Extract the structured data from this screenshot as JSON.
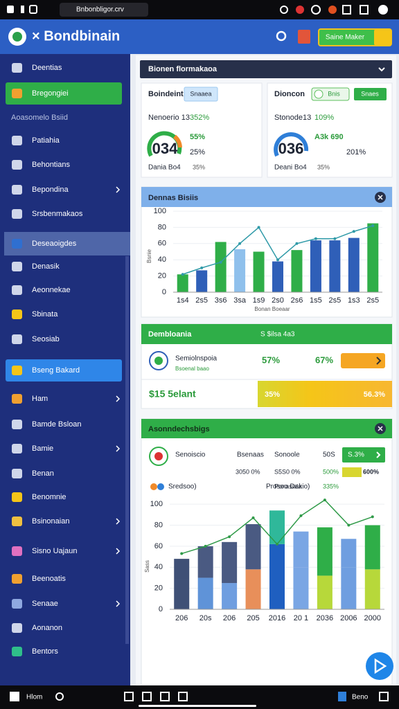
{
  "status_bar": {
    "url": "Bnbonbligor.crv"
  },
  "header": {
    "title": "× Bondbinain",
    "button": "Saine Maker"
  },
  "sidebar": {
    "items": [
      {
        "label": "Deentias"
      },
      {
        "label": "Bregongiei",
        "state": "active-green"
      },
      {
        "label": "Aoasomelo Bsiid",
        "state": "section"
      },
      {
        "label": "Patiahia"
      },
      {
        "label": "Behontians"
      },
      {
        "label": "Bepondina",
        "submenu": true
      },
      {
        "label": "Srsbenmakaos"
      },
      {
        "label": "Deseaoigdes",
        "state": "highlight"
      },
      {
        "label": "Denasik"
      },
      {
        "label": "Aeonnekae"
      },
      {
        "label": "Sbinata"
      },
      {
        "label": "Seosiab"
      },
      {
        "label": "Bseng Bakard",
        "state": "active-blue"
      },
      {
        "label": "Ham",
        "submenu": true
      },
      {
        "label": "Bamde Bsloan"
      },
      {
        "label": "Bamie",
        "submenu": true
      },
      {
        "label": "Benan"
      },
      {
        "label": "Benomnie"
      },
      {
        "label": "Bsinonaian",
        "submenu": true
      },
      {
        "label": "Sisno Uajaun",
        "submenu": true
      },
      {
        "label": "Beenoatis"
      },
      {
        "label": "Senaae",
        "submenu": true
      },
      {
        "label": "Aonanon"
      },
      {
        "label": "Bentors"
      }
    ]
  },
  "top_bar": {
    "title": "Bionen flormakaoa"
  },
  "cards": [
    {
      "title": "Boindeint",
      "button": "Snaaea",
      "stat_label": "Nenoerio 13",
      "stat_value": "352%",
      "gauge_value": "034",
      "side_1": "55%",
      "side_2": "25%",
      "foot_label": "Dania Bo4",
      "foot_value": "35%"
    },
    {
      "title": "Dioncon",
      "toggle": "Bnis",
      "button": "Snaes",
      "stat_label": "Stonode13",
      "stat_value": "109%",
      "gauge_value": "036",
      "side_1": "A3k  690",
      "side_2": "201%",
      "foot_label": "Deani Bo4",
      "foot_value": "35%"
    }
  ],
  "chart_data": [
    {
      "type": "bar",
      "title": "Dennas Bisiis",
      "x_label": "Bonan Boeaar",
      "y_label": "Bsnie",
      "categories": [
        "1s4",
        "2s5",
        "3s6",
        "3sa",
        "1s9",
        "2s0",
        "2s6",
        "1s5",
        "2s5",
        "1s3",
        "2s5"
      ],
      "series": [
        {
          "type": "bar",
          "values": [
            22,
            27,
            62,
            53,
            50,
            38,
            52,
            64,
            64,
            67,
            85
          ],
          "colors": [
            "#2fae48",
            "#2f5fb8",
            "#2fae48",
            "#8fc0ec",
            "#2fae48",
            "#2f5fb8",
            "#2fae48",
            "#2f5fb8",
            "#2f5fb8",
            "#2f5fb8",
            "#2fae48"
          ]
        },
        {
          "type": "line",
          "color": "#2f9aa8",
          "values": [
            22,
            30,
            37,
            60,
            80,
            40,
            60,
            66,
            66,
            75,
            82
          ]
        }
      ],
      "ylim": [
        0,
        100
      ],
      "yticks": [
        0,
        20,
        40,
        60,
        80,
        100
      ],
      "grid": true
    },
    {
      "type": "bar",
      "stacked": true,
      "title": "Asonndechsbigs",
      "y_label": "Sass",
      "categories": [
        "206",
        "20s",
        "206",
        "205",
        "2016",
        "20 1",
        "2036",
        "2006",
        "2000"
      ],
      "series": [
        {
          "type": "bar",
          "values": [
            28,
            30,
            25,
            38,
            62,
            40,
            32,
            40,
            38
          ],
          "colors": [
            "#3f5076",
            "#5f93d8",
            "#6f9ee0",
            "#e88f5a",
            "#1f5fc0",
            "#7aa6e4",
            "#b7d83a",
            "#6f9ee0",
            "#b7d83a"
          ]
        },
        {
          "type": "bar",
          "values": [
            20,
            30,
            39,
            43,
            32,
            34,
            46,
            27,
            42
          ],
          "colors": [
            "#3f5076",
            "#4a5a82",
            "#4a5a82",
            "#4a5a82",
            "#2fb89a",
            "#7aa6e4",
            "#2fae48",
            "#6f9ee0",
            "#2fae48"
          ]
        },
        {
          "type": "line",
          "color": "#2f9a48",
          "values": [
            53,
            60,
            69,
            87,
            62,
            89,
            104,
            80,
            88
          ]
        }
      ],
      "ylim": [
        0,
        110
      ],
      "yticks": [
        0,
        20,
        40,
        60,
        80,
        100
      ],
      "grid": true
    }
  ],
  "summary": {
    "title": "Dembloania",
    "note": "S $ilsa 4a3",
    "item": "Semiolnspoia",
    "item_sub": "Bsoenal baao",
    "value_1": "57%",
    "value_2": "67%",
    "total": "$15 5elant",
    "bar_left": "35%",
    "bar_right": "56.3%"
  },
  "analysis": {
    "item": "Senoiscio",
    "col_1": "Bsenaas",
    "col_2": "Sonoole",
    "col_3": "50S",
    "button": "S.3%",
    "row_2": [
      "3050 0%",
      "S5S0 0%",
      "Ponasiaia",
      "500%",
      "600%"
    ],
    "legend_1": "Sredsoo)",
    "legend_2": "Prosoo Dakio)",
    "legend_3": "335%"
  },
  "taskbar": {
    "left": "Hlom",
    "right": "Beno"
  }
}
